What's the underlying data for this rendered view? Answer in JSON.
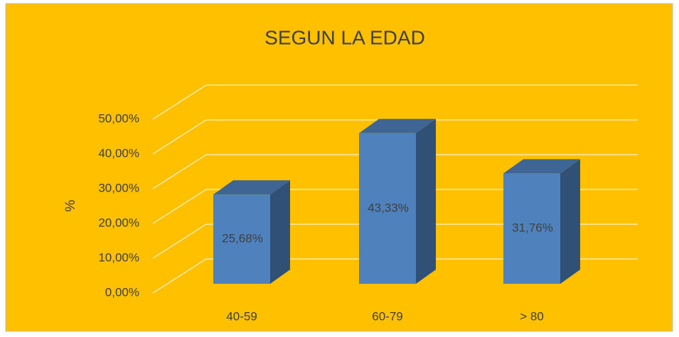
{
  "chart_data": {
    "type": "bar3d",
    "title": "SEGUN LA EDAD",
    "y_label": "%",
    "categories": [
      "40-59",
      "60-79",
      "> 80"
    ],
    "values": [
      25.68,
      43.33,
      31.76
    ],
    "value_labels": [
      "25,68%",
      "43,33%",
      "31,76%"
    ],
    "color": "#4f81bd",
    "background": "#ffc000",
    "ylim": [
      0,
      50
    ],
    "yticks": [
      {
        "value": 0,
        "label": "0,00%"
      },
      {
        "value": 10,
        "label": "10,00%"
      },
      {
        "value": 20,
        "label": "20,00%"
      },
      {
        "value": 30,
        "label": "30,00%"
      },
      {
        "value": 40,
        "label": "40,00%"
      },
      {
        "value": 50,
        "label": "50,00%"
      }
    ],
    "grid": true
  }
}
